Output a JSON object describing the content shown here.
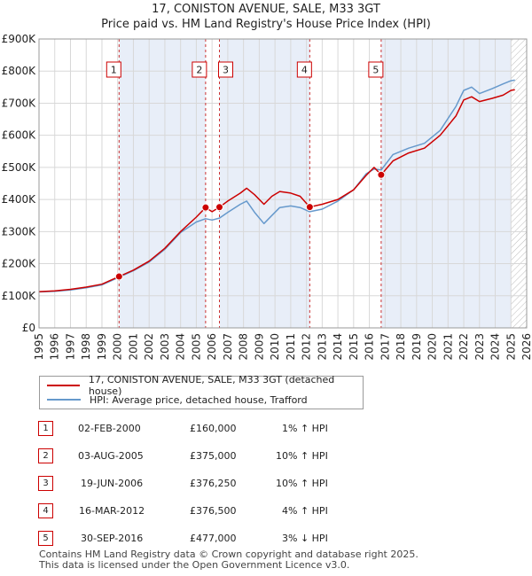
{
  "title_line1": "17, CONISTON AVENUE, SALE, M33 3GT",
  "title_line2": "Price paid vs. HM Land Registry's House Price Index (HPI)",
  "colors": {
    "property_line": "#cc0000",
    "hpi_line": "#6699cc",
    "shade": "#e8eef8",
    "grid": "#d8d8d8",
    "marker_border": "#cc0000",
    "vline": "#cc3333"
  },
  "chart_data": {
    "type": "line",
    "title": "17, CONISTON AVENUE, SALE, M33 3GT — Price paid vs. HM Land Registry's House Price Index (HPI)",
    "xlim": [
      1995,
      2026
    ],
    "ylim": [
      0,
      900000
    ],
    "x_ticks": [
      "1995",
      "1996",
      "1997",
      "1998",
      "1999",
      "2000",
      "2001",
      "2002",
      "2003",
      "2004",
      "2005",
      "2006",
      "2007",
      "2008",
      "2009",
      "2010",
      "2011",
      "2012",
      "2013",
      "2014",
      "2015",
      "2016",
      "2017",
      "2018",
      "2019",
      "2020",
      "2021",
      "2022",
      "2023",
      "2024",
      "2025",
      "2026"
    ],
    "y_ticks": [
      {
        "value": 0,
        "label": "£0"
      },
      {
        "value": 100000,
        "label": "£100K"
      },
      {
        "value": 200000,
        "label": "£200K"
      },
      {
        "value": 300000,
        "label": "£300K"
      },
      {
        "value": 400000,
        "label": "£400K"
      },
      {
        "value": 500000,
        "label": "£500K"
      },
      {
        "value": 600000,
        "label": "£600K"
      },
      {
        "value": 700000,
        "label": "£700K"
      },
      {
        "value": 800000,
        "label": "£800K"
      },
      {
        "value": 900000,
        "label": "£900K"
      }
    ],
    "series": [
      {
        "name": "17, CONISTON AVENUE, SALE, M33 3GT (detached house)",
        "color": "#cc0000",
        "points": [
          [
            1995.0,
            113000
          ],
          [
            1996.0,
            115000
          ],
          [
            1997.0,
            120000
          ],
          [
            1998.0,
            127000
          ],
          [
            1999.0,
            136000
          ],
          [
            2000.09,
            160000
          ],
          [
            2001.0,
            180000
          ],
          [
            2002.0,
            208000
          ],
          [
            2003.0,
            248000
          ],
          [
            2004.0,
            300000
          ],
          [
            2005.0,
            345000
          ],
          [
            2005.59,
            375000
          ],
          [
            2006.0,
            362000
          ],
          [
            2006.47,
            376250
          ],
          [
            2007.0,
            395000
          ],
          [
            2007.8,
            420000
          ],
          [
            2008.2,
            435000
          ],
          [
            2008.7,
            415000
          ],
          [
            2009.3,
            385000
          ],
          [
            2009.8,
            410000
          ],
          [
            2010.3,
            425000
          ],
          [
            2011.0,
            420000
          ],
          [
            2011.6,
            410000
          ],
          [
            2012.21,
            376500
          ],
          [
            2013.0,
            385000
          ],
          [
            2014.0,
            400000
          ],
          [
            2015.0,
            430000
          ],
          [
            2015.8,
            475000
          ],
          [
            2016.3,
            500000
          ],
          [
            2016.75,
            477000
          ],
          [
            2017.5,
            520000
          ],
          [
            2018.5,
            545000
          ],
          [
            2019.5,
            560000
          ],
          [
            2020.5,
            600000
          ],
          [
            2021.5,
            660000
          ],
          [
            2022.0,
            710000
          ],
          [
            2022.5,
            720000
          ],
          [
            2023.0,
            705000
          ],
          [
            2023.8,
            715000
          ],
          [
            2024.5,
            725000
          ],
          [
            2025.0,
            740000
          ],
          [
            2025.25,
            742000
          ]
        ]
      },
      {
        "name": "HPI: Average price, detached house, Trafford",
        "color": "#6699cc",
        "points": [
          [
            1995.0,
            112000
          ],
          [
            1996.0,
            114000
          ],
          [
            1997.0,
            118000
          ],
          [
            1998.0,
            125000
          ],
          [
            1999.0,
            134000
          ],
          [
            2000.09,
            158000
          ],
          [
            2001.0,
            178000
          ],
          [
            2002.0,
            205000
          ],
          [
            2003.0,
            245000
          ],
          [
            2004.0,
            297000
          ],
          [
            2005.0,
            330000
          ],
          [
            2005.59,
            340000
          ],
          [
            2006.0,
            336000
          ],
          [
            2006.47,
            342000
          ],
          [
            2007.0,
            360000
          ],
          [
            2007.8,
            385000
          ],
          [
            2008.2,
            395000
          ],
          [
            2008.7,
            360000
          ],
          [
            2009.3,
            325000
          ],
          [
            2009.8,
            350000
          ],
          [
            2010.3,
            375000
          ],
          [
            2011.0,
            380000
          ],
          [
            2011.6,
            375000
          ],
          [
            2012.21,
            362000
          ],
          [
            2013.0,
            370000
          ],
          [
            2014.0,
            395000
          ],
          [
            2015.0,
            430000
          ],
          [
            2015.8,
            480000
          ],
          [
            2016.3,
            495000
          ],
          [
            2016.75,
            492000
          ],
          [
            2017.5,
            540000
          ],
          [
            2018.5,
            560000
          ],
          [
            2019.5,
            575000
          ],
          [
            2020.5,
            615000
          ],
          [
            2021.5,
            690000
          ],
          [
            2022.0,
            740000
          ],
          [
            2022.5,
            750000
          ],
          [
            2023.0,
            730000
          ],
          [
            2023.8,
            745000
          ],
          [
            2024.5,
            760000
          ],
          [
            2025.0,
            770000
          ],
          [
            2025.25,
            772000
          ]
        ]
      }
    ],
    "sales": [
      {
        "label": "1",
        "x": 2000.09,
        "y": 160000
      },
      {
        "label": "2",
        "x": 2005.59,
        "y": 375000
      },
      {
        "label": "3",
        "x": 2006.47,
        "y": 376250
      },
      {
        "label": "4",
        "x": 2012.21,
        "y": 376500
      },
      {
        "label": "5",
        "x": 2016.75,
        "y": 477000
      }
    ],
    "shaded_spans": [
      [
        2000.09,
        2005.59
      ],
      [
        2006.47,
        2012.21
      ],
      [
        2016.75,
        2025.0
      ]
    ],
    "hatched_span": [
      2025.0,
      2026.0
    ]
  },
  "legend": {
    "property": "17, CONISTON AVENUE, SALE, M33 3GT (detached house)",
    "hpi": "HPI: Average price, detached house, Trafford"
  },
  "transactions": [
    {
      "num": "1",
      "date": "02-FEB-2000",
      "price": "£160,000",
      "hpi": "1% ↑ HPI"
    },
    {
      "num": "2",
      "date": "03-AUG-2005",
      "price": "£375,000",
      "hpi": "10% ↑ HPI"
    },
    {
      "num": "3",
      "date": "19-JUN-2006",
      "price": "£376,250",
      "hpi": "10% ↑ HPI"
    },
    {
      "num": "4",
      "date": "16-MAR-2012",
      "price": "£376,500",
      "hpi": "4% ↑ HPI"
    },
    {
      "num": "5",
      "date": "30-SEP-2016",
      "price": "£477,000",
      "hpi": "3% ↓ HPI"
    }
  ],
  "footer_line1": "Contains HM Land Registry data © Crown copyright and database right 2025.",
  "footer_line2": "This data is licensed under the Open Government Licence v3.0."
}
